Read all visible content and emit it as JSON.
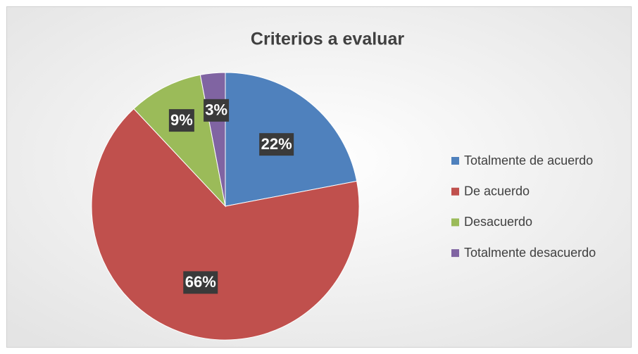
{
  "chart_data": {
    "type": "pie",
    "title": "Criterios a evaluar",
    "categories": [
      "Totalmente de acuerdo",
      "De acuerdo",
      "Desacuerdo",
      "Totalmente desacuerdo"
    ],
    "values": [
      22,
      66,
      9,
      3
    ],
    "value_labels": [
      "22%",
      "66%",
      "9%",
      "3%"
    ],
    "colors": [
      "#4f81bd",
      "#c0504d",
      "#9bbb59",
      "#8064a2"
    ],
    "legend": "right"
  }
}
